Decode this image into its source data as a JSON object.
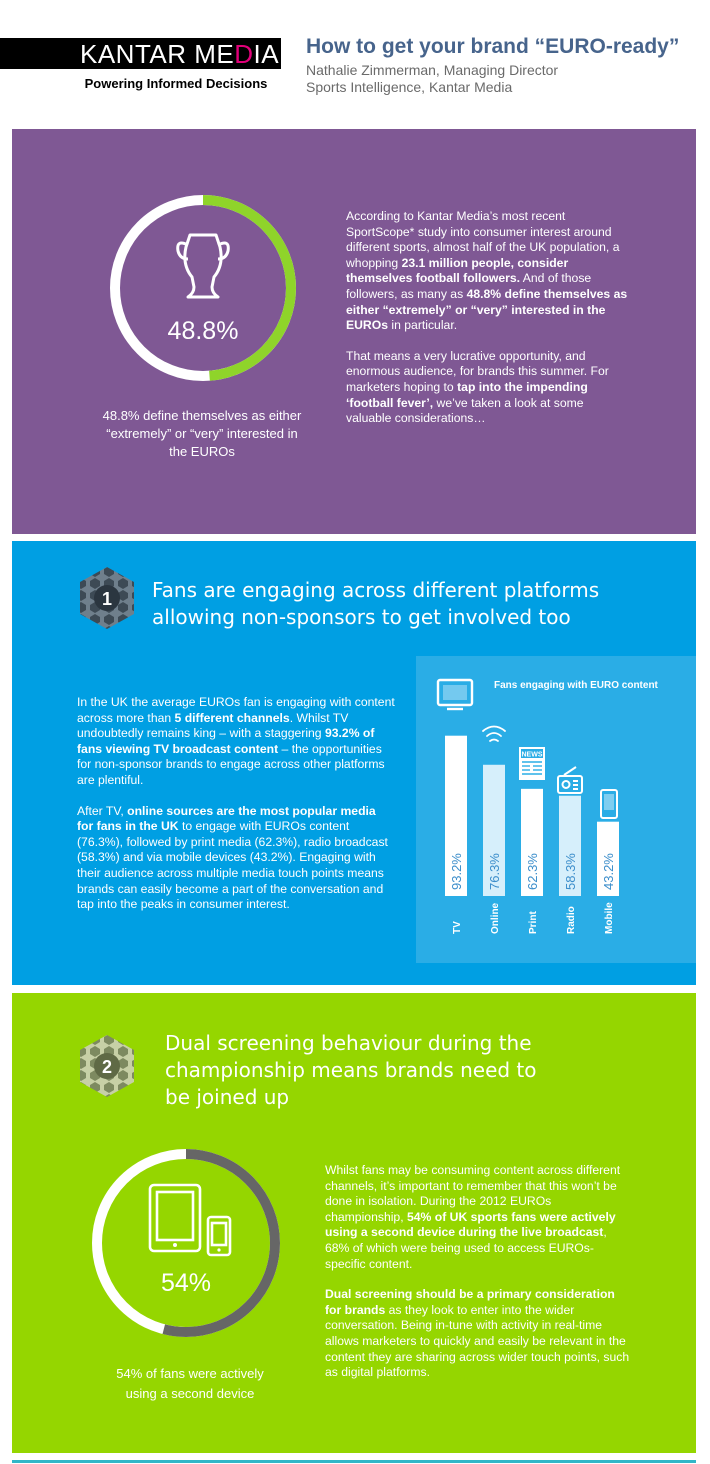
{
  "header": {
    "logo_main": "KANTAR ME",
    "logo_accent": "D",
    "logo_tail": "IA",
    "tagline": "Powering Informed Decisions",
    "title": "How to get your brand “EURO-ready”",
    "author_line1": "Nathalie Zimmerman, Managing Director",
    "author_line2": "Sports Intelligence, Kantar Media"
  },
  "colors": {
    "purple": "#7f5894",
    "blue": "#009fe3",
    "green": "#95d600",
    "accent_green": "#8fd42a",
    "ring_grey": "#666666"
  },
  "intro": {
    "ring_value": "48.8%",
    "ring_fraction": 0.488,
    "icon": "trophy-icon",
    "caption": "48.8% define themselves as either “extremely” or “very” interested in the EUROs",
    "p1_a": "According to Kantar Media’s most recent SportScope* study into consumer interest around different sports, almost half of the UK population, a whopping ",
    "p1_b": "23.1 million people, consider themselves football followers.",
    "p1_c": " And of those followers, as many as ",
    "p1_d": "48.8% define themselves as either “extremely” or “very” interested in the EUROs",
    "p1_e": " in particular.",
    "p2_a": "That means a very lucrative opportunity, and enormous audience, for brands this summer. For marketers hoping to ",
    "p2_b": "tap into the impending ‘football fever’,",
    "p2_c": " we’ve taken a look at some valuable considerations…"
  },
  "platforms": {
    "badge_number": "1",
    "heading_line1": "Fans are engaging across different platforms",
    "heading_line2": "allowing non-sponsors to get involved too",
    "p1_a": "In the UK the average EUROs fan is engaging with content across more than ",
    "p1_b": "5 different channels",
    "p1_c": ". Whilst TV undoubtedly remains king – with a staggering ",
    "p1_d": "93.2% of fans viewing TV broadcast content",
    "p1_e": " – the opportunities for non-sponsor brands to engage across other platforms are plentiful.",
    "p2_a": "After TV, ",
    "p2_b": "online sources are the most popular media for fans in the UK",
    "p2_c": " to engage with EUROs content (76.3%), followed by print media (62.3%), radio broadcast (58.3%) and via mobile devices (43.2%). Engaging with their audience across multiple media touch points means brands can easily become a part of the conversation and tap into the peaks in consumer interest."
  },
  "chart_data": {
    "type": "bar",
    "title": "Fans engaging with EURO content",
    "categories": [
      "TV",
      "Online",
      "Print",
      "Radio",
      "Mobile"
    ],
    "values": [
      93.2,
      76.3,
      62.3,
      58.3,
      43.2
    ],
    "value_labels": [
      "93.2%",
      "76.3%",
      "62.3%",
      "58.3%",
      "43.2%"
    ],
    "icons": [
      "tv-icon",
      "wifi-icon",
      "newspaper-icon",
      "radio-icon",
      "mobile-icon"
    ],
    "newspaper_label": "NEWS",
    "ylim": [
      0,
      100
    ],
    "grid": false
  },
  "dual": {
    "badge_number": "2",
    "heading_line1": "Dual screening behaviour during the",
    "heading_line2": "championship means brands need to",
    "heading_line3": "be joined up",
    "ring_value": "54%",
    "ring_fraction": 0.54,
    "icon": "tablet-and-phone-icon",
    "caption_line1": "54% of fans were actively",
    "caption_line2": "using a second device",
    "p1_a": "Whilst fans may be consuming content across different channels, it’s important to remember that this won’t be done in isolation. During the 2012 EUROs championship, ",
    "p1_b": "54% of UK sports fans were actively using a second device during the live broadcast",
    "p1_c": ", 68% of which were being used to access EUROs-specific content.",
    "p2_a": "Dual screening should be a primary consideration for brands",
    "p2_b": " as they look to enter into the wider conversation. Being in-tune with activity in real-time allows marketers to quickly and easily be relevant in the content they are sharing across wider touch points, such as digital platforms."
  }
}
